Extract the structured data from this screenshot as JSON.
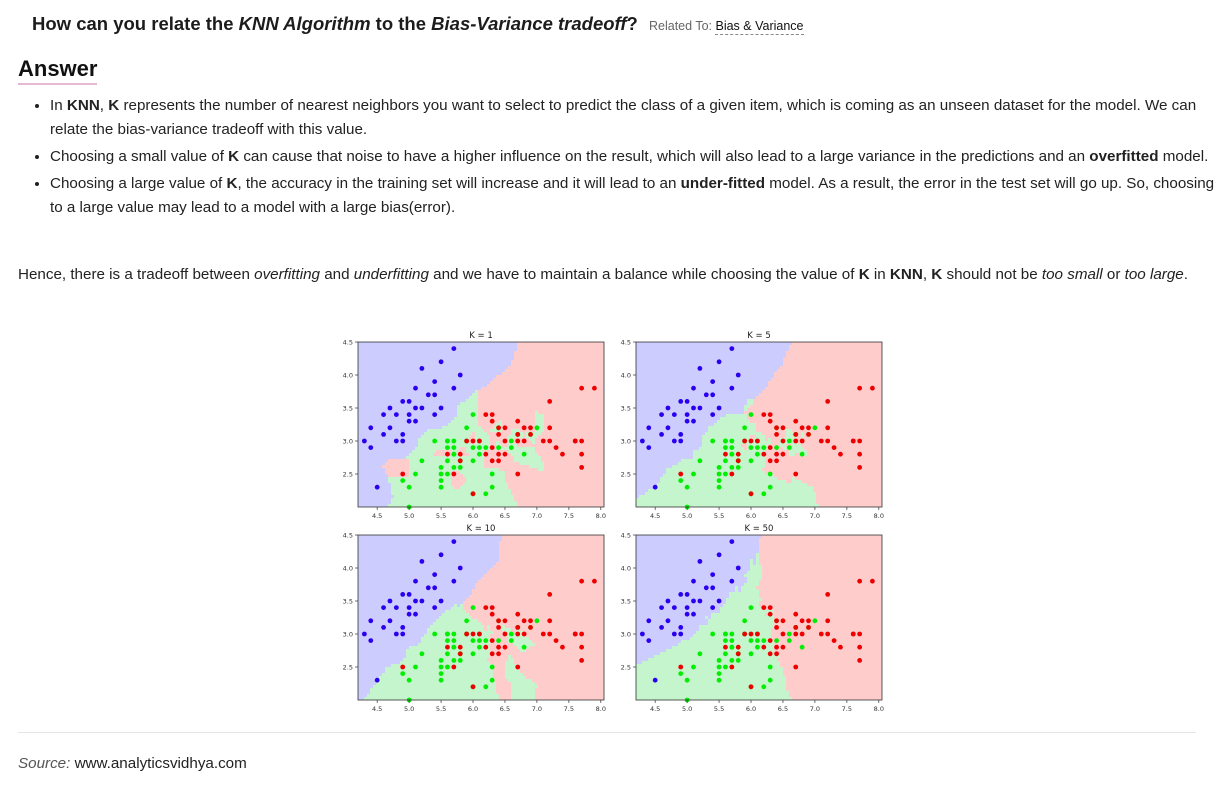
{
  "question": {
    "p1": "How can you relate the ",
    "t1": "KNN Algorithm",
    "p2": " to the ",
    "t2": "Bias-Variance tradeoff",
    "p3": "?",
    "related_label": "Related To:",
    "related_topic": "Bias & Variance"
  },
  "answer_heading": "Answer",
  "bullets": [
    {
      "a": "In ",
      "b": "KNN",
      "c": ", ",
      "d": "K",
      "e": " represents the number of nearest neighbors you want to select to predict the class of a given item, which is coming as an unseen dataset for the model. We can relate the bias-variance tradeoff with this value."
    },
    {
      "a": "Choosing a small value of ",
      "b": "K",
      "c": " can cause that noise to have a higher influence on the result, which will also lead to a large variance in the predictions and an ",
      "d": "overfitted",
      "e": " model."
    },
    {
      "a": "Choosing a large value of ",
      "b": "K",
      "c": ", the accuracy in the training set will increase and it will lead to an ",
      "d": "under-fitted",
      "e": " model. As a result, the error in the test set will go up. So, choosing ",
      "f": "K",
      "g": " to a large value may lead to a model with a large bias(error)."
    }
  ],
  "conclusion": {
    "a": "Hence, there is a tradeoff between ",
    "b": "overfitting",
    "c": " and ",
    "d": "underfitting",
    "e": " and we have to maintain a balance while choosing the value of ",
    "f": "K",
    "g": " in ",
    "h": "KNN",
    "i": ", ",
    "j": "K",
    "k": " should not be ",
    "l": "too small",
    "m": " or ",
    "n": "too large",
    "o": "."
  },
  "source": {
    "label": "Source:",
    "text": "www.analyticsvidhya.com"
  },
  "chart_data": {
    "type": "scatter",
    "panels": [
      "K = 1",
      "K = 5",
      "K = 10",
      "K = 50"
    ],
    "xlim": [
      4.2,
      8.05
    ],
    "ylim": [
      2.0,
      4.5
    ],
    "xticks": [
      "4.5",
      "5.0",
      "5.5",
      "6.0",
      "6.5",
      "7.0",
      "7.5",
      "8.0"
    ],
    "yticks": [
      "2.5",
      "3.0",
      "3.5",
      "4.0",
      "4.5"
    ],
    "region_colors": {
      "blue": "#ccccff",
      "green": "#c4f5cc",
      "red": "#ffcccc"
    },
    "point_colors": {
      "blue": "#2a00ee",
      "green": "#00ee00",
      "red": "#ee0000"
    },
    "classes": [
      {
        "name": "",
        "color": "blue",
        "points": [
          [
            5.1,
            3.5
          ],
          [
            4.9,
            3.0
          ],
          [
            4.7,
            3.2
          ],
          [
            4.6,
            3.1
          ],
          [
            5.0,
            3.6
          ],
          [
            5.4,
            3.9
          ],
          [
            4.6,
            3.4
          ],
          [
            5.0,
            3.4
          ],
          [
            4.4,
            2.9
          ],
          [
            4.9,
            3.1
          ],
          [
            5.4,
            3.7
          ],
          [
            4.8,
            3.4
          ],
          [
            4.8,
            3.0
          ],
          [
            4.3,
            3.0
          ],
          [
            5.8,
            4.0
          ],
          [
            5.7,
            4.4
          ],
          [
            5.2,
            3.5
          ],
          [
            5.7,
            3.8
          ],
          [
            5.1,
            3.8
          ],
          [
            5.2,
            4.1
          ],
          [
            5.5,
            4.2
          ],
          [
            5.3,
            3.7
          ],
          [
            4.4,
            3.2
          ],
          [
            5.5,
            3.5
          ],
          [
            4.5,
            2.3
          ],
          [
            5.4,
            3.4
          ],
          [
            5.1,
            3.3
          ],
          [
            4.9,
            3.6
          ],
          [
            5.0,
            3.3
          ],
          [
            4.7,
            3.5
          ]
        ]
      },
      {
        "name": "",
        "color": "green",
        "points": [
          [
            5.5,
            2.3
          ],
          [
            5.7,
            2.8
          ],
          [
            4.9,
            2.4
          ],
          [
            6.6,
            2.9
          ],
          [
            5.2,
            2.7
          ],
          [
            5.0,
            2.0
          ],
          [
            5.9,
            3.0
          ],
          [
            6.0,
            2.2
          ],
          [
            6.1,
            2.9
          ],
          [
            5.6,
            2.9
          ],
          [
            6.7,
            3.1
          ],
          [
            5.6,
            3.0
          ],
          [
            5.8,
            2.7
          ],
          [
            6.2,
            2.2
          ],
          [
            5.6,
            2.5
          ],
          [
            5.9,
            3.2
          ],
          [
            6.1,
            2.8
          ],
          [
            6.3,
            2.5
          ],
          [
            6.4,
            2.9
          ],
          [
            6.6,
            3.0
          ],
          [
            6.8,
            2.8
          ],
          [
            6.0,
            2.9
          ],
          [
            5.7,
            2.6
          ],
          [
            5.5,
            2.4
          ],
          [
            5.8,
            2.7
          ],
          [
            6.0,
            2.7
          ],
          [
            5.4,
            3.0
          ],
          [
            6.0,
            3.4
          ],
          [
            6.7,
            3.1
          ],
          [
            6.3,
            2.3
          ],
          [
            5.6,
            3.0
          ],
          [
            5.5,
            2.5
          ],
          [
            5.5,
            2.6
          ],
          [
            6.1,
            3.0
          ],
          [
            5.8,
            2.6
          ],
          [
            5.0,
            2.3
          ],
          [
            5.6,
            2.7
          ],
          [
            5.7,
            3.0
          ],
          [
            5.7,
            2.9
          ],
          [
            6.2,
            2.9
          ],
          [
            5.1,
            2.5
          ],
          [
            5.7,
            2.8
          ],
          [
            7.0,
            3.2
          ],
          [
            6.4,
            3.2
          ],
          [
            6.9,
            3.1
          ]
        ]
      },
      {
        "name": "",
        "color": "red",
        "points": [
          [
            6.3,
            3.3
          ],
          [
            5.8,
            2.7
          ],
          [
            7.1,
            3.0
          ],
          [
            6.3,
            2.9
          ],
          [
            6.5,
            3.0
          ],
          [
            7.6,
            3.0
          ],
          [
            4.9,
            2.5
          ],
          [
            7.3,
            2.9
          ],
          [
            6.7,
            2.5
          ],
          [
            7.2,
            3.6
          ],
          [
            6.5,
            3.2
          ],
          [
            6.4,
            2.7
          ],
          [
            6.8,
            3.0
          ],
          [
            5.7,
            2.5
          ],
          [
            5.8,
            2.8
          ],
          [
            6.4,
            3.2
          ],
          [
            7.7,
            3.8
          ],
          [
            7.7,
            2.6
          ],
          [
            6.0,
            2.2
          ],
          [
            6.9,
            3.2
          ],
          [
            5.6,
            2.8
          ],
          [
            7.7,
            2.8
          ],
          [
            6.3,
            2.7
          ],
          [
            6.7,
            3.3
          ],
          [
            7.2,
            3.2
          ],
          [
            6.2,
            2.8
          ],
          [
            6.1,
            3.0
          ],
          [
            6.4,
            2.8
          ],
          [
            7.4,
            2.8
          ],
          [
            7.9,
            3.8
          ],
          [
            7.7,
            3.0
          ],
          [
            6.3,
            3.4
          ],
          [
            6.4,
            3.1
          ],
          [
            6.0,
            3.0
          ],
          [
            6.9,
            3.1
          ],
          [
            6.7,
            3.1
          ],
          [
            6.8,
            3.2
          ],
          [
            6.7,
            3.0
          ],
          [
            6.2,
            3.4
          ],
          [
            5.9,
            3.0
          ],
          [
            7.2,
            3.0
          ],
          [
            7.6,
            3.0
          ],
          [
            6.5,
            2.8
          ]
        ]
      }
    ]
  }
}
